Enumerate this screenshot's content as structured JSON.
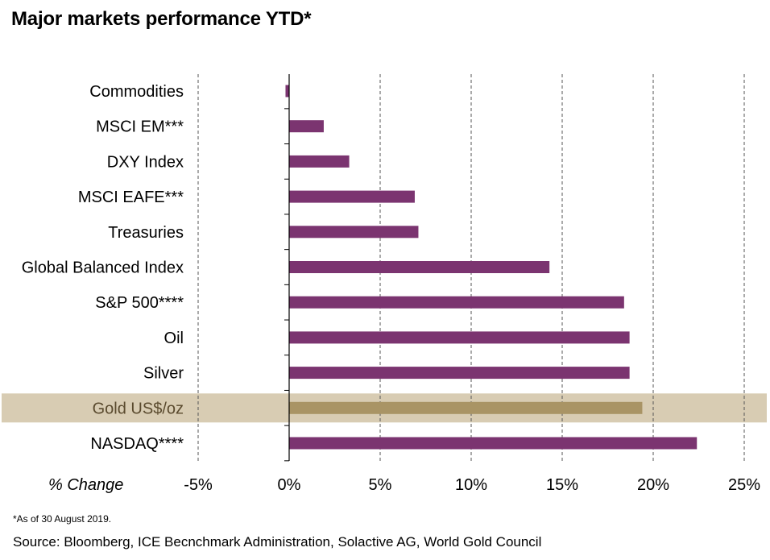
{
  "title": "Major markets performance YTD*",
  "footnote": "*As of 30 August 2019.",
  "source": "Source: Bloomberg, ICE Becnchmark Administration, Solactive AG, World Gold Council",
  "colors": {
    "bar": "#7b3470",
    "highlight_bar": "#a99465",
    "highlight_band": "#d8ccb3",
    "highlight_text": "#5a4a2e",
    "grid": "#555555",
    "axis": "#000000"
  },
  "chart_data": {
    "type": "bar",
    "orientation": "horizontal",
    "categories": [
      "Commodities",
      "MSCI EM***",
      "DXY Index",
      "MSCI EAFE***",
      "Treasuries",
      "Global Balanced Index",
      "S&P 500****",
      "Oil",
      "Silver",
      "Gold US$/oz",
      "NASDAQ****"
    ],
    "values": [
      -0.2,
      1.9,
      3.3,
      6.9,
      7.1,
      14.3,
      18.4,
      18.7,
      18.7,
      19.4,
      22.4
    ],
    "highlight_category": "Gold US$/oz",
    "xlabel": "% Change",
    "xlim": [
      -5,
      25
    ],
    "xticks": [
      -5,
      0,
      5,
      10,
      15,
      20,
      25
    ],
    "xtick_labels": [
      "-5%",
      "0%",
      "5%",
      "10%",
      "15%",
      "20%",
      "25%"
    ],
    "grid": "vertical dashed",
    "legend": "none"
  }
}
